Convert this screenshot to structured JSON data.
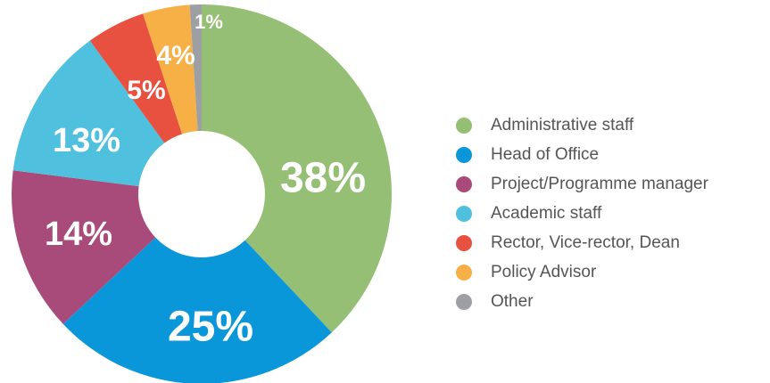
{
  "chart_data": {
    "type": "donut",
    "categories": [
      "Administrative staff",
      "Head of Office",
      "Project/Programme manager",
      "Academic staff",
      "Rector, Vice-rector, Dean",
      "Policy Advisor",
      "Other"
    ],
    "values": [
      38,
      25,
      14,
      13,
      5,
      4,
      1
    ],
    "value_labels": [
      "38%",
      "25%",
      "14%",
      "13%",
      "5%",
      "4%",
      "1%"
    ],
    "colors": [
      "#95bf74",
      "#0a97d9",
      "#a94b7a",
      "#4fc1de",
      "#e8503f",
      "#f7b046",
      "#9d9fa2"
    ],
    "legend": "right"
  }
}
